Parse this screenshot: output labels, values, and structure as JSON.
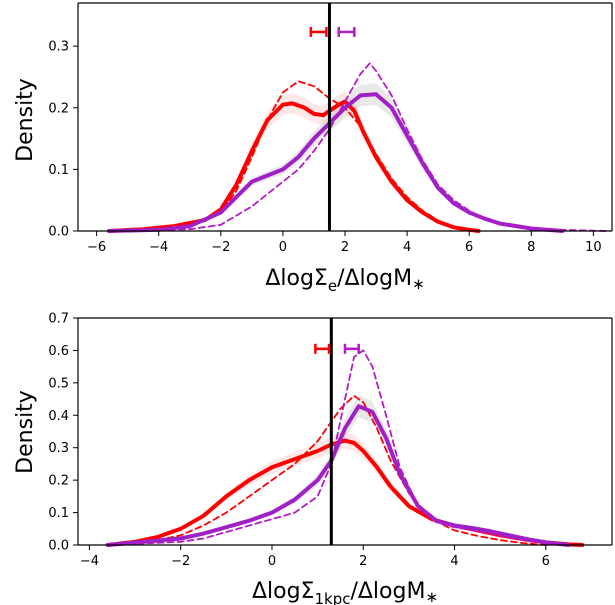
{
  "chart_data": [
    {
      "type": "line",
      "panel": "top",
      "ylabel": "Density",
      "xlabel_main": "ΔlogΣ",
      "xlabel_sub": "e",
      "xlabel_tail": "/ΔlogM",
      "xlabel_star": "∗",
      "xlim": [
        -6.6,
        10.6
      ],
      "ylim": [
        0,
        0.37
      ],
      "xticks": [
        -6,
        -4,
        -2,
        0,
        2,
        4,
        6,
        8,
        10
      ],
      "yticks": [
        0.0,
        0.1,
        0.2,
        0.3
      ],
      "ytick_labels": [
        "0.0",
        "0.1",
        "0.2",
        "0.3"
      ],
      "vline_x": 1.5,
      "errorbars": [
        {
          "color": "#ff0000",
          "xmin": 0.9,
          "xmax": 1.4,
          "y": 0.323
        },
        {
          "color": "#b31bc8",
          "xmin": 1.8,
          "xmax": 2.3,
          "y": 0.323
        }
      ],
      "series": [
        {
          "color": "#ff0000",
          "style": "solid",
          "x": [
            -5.6,
            -4.5,
            -3.5,
            -2.5,
            -2.0,
            -1.5,
            -1.0,
            -0.5,
            0.0,
            0.3,
            0.7,
            1.0,
            1.3,
            1.5,
            1.8,
            2.0,
            2.3,
            2.6,
            3.0,
            3.5,
            4.0,
            4.5,
            5.0,
            5.5,
            6.0,
            6.3
          ],
          "y": [
            0.0,
            0.003,
            0.008,
            0.018,
            0.035,
            0.075,
            0.13,
            0.18,
            0.205,
            0.207,
            0.2,
            0.19,
            0.188,
            0.195,
            0.205,
            0.21,
            0.195,
            0.16,
            0.12,
            0.08,
            0.05,
            0.03,
            0.015,
            0.006,
            0.002,
            0.0
          ]
        },
        {
          "color": "#ff0000",
          "style": "dashed",
          "x": [
            -5.6,
            -4.5,
            -3.5,
            -2.5,
            -2.0,
            -1.5,
            -1.0,
            -0.5,
            0.0,
            0.5,
            1.0,
            1.5,
            2.0,
            2.5,
            3.0,
            3.5,
            4.0,
            4.5,
            5.0,
            5.5,
            6.0,
            6.3
          ],
          "y": [
            0.0,
            0.003,
            0.008,
            0.016,
            0.03,
            0.065,
            0.12,
            0.18,
            0.225,
            0.243,
            0.235,
            0.215,
            0.2,
            0.17,
            0.125,
            0.085,
            0.055,
            0.033,
            0.017,
            0.007,
            0.002,
            0.0
          ]
        },
        {
          "color": "#a020c8",
          "style": "solid",
          "x": [
            -5.6,
            -4.0,
            -3.0,
            -2.0,
            -1.5,
            -1.0,
            -0.5,
            0.0,
            0.5,
            1.0,
            1.5,
            2.0,
            2.5,
            3.0,
            3.5,
            4.0,
            4.5,
            5.0,
            5.5,
            6.0,
            6.5,
            7.0,
            8.0,
            9.0
          ],
          "y": [
            0.0,
            0.002,
            0.008,
            0.03,
            0.055,
            0.08,
            0.09,
            0.1,
            0.12,
            0.15,
            0.175,
            0.2,
            0.22,
            0.222,
            0.2,
            0.155,
            0.11,
            0.07,
            0.045,
            0.03,
            0.02,
            0.012,
            0.004,
            0.0
          ]
        },
        {
          "color": "#b31bc8",
          "style": "dashed",
          "x": [
            -5.6,
            -3.0,
            -2.0,
            -1.5,
            -1.0,
            -0.5,
            0.0,
            0.5,
            1.0,
            1.5,
            2.0,
            2.5,
            2.8,
            3.0,
            3.5,
            4.0,
            4.5,
            5.0,
            5.5,
            6.0,
            6.5,
            7.0,
            8.0,
            9.0,
            10.4
          ],
          "y": [
            0.0,
            0.003,
            0.01,
            0.025,
            0.04,
            0.06,
            0.08,
            0.1,
            0.13,
            0.165,
            0.21,
            0.255,
            0.272,
            0.26,
            0.22,
            0.165,
            0.115,
            0.075,
            0.05,
            0.033,
            0.02,
            0.012,
            0.005,
            0.002,
            0.0
          ]
        }
      ]
    },
    {
      "type": "line",
      "panel": "bottom",
      "ylabel": "Density",
      "xlabel_main": "ΔlogΣ",
      "xlabel_sub": "1kpc",
      "xlabel_tail": "/ΔlogM",
      "xlabel_star": "∗",
      "xlim": [
        -4.25,
        7.45
      ],
      "ylim": [
        0,
        0.7
      ],
      "xticks": [
        -4,
        -2,
        0,
        2,
        4,
        6
      ],
      "yticks": [
        0.0,
        0.1,
        0.2,
        0.3,
        0.4,
        0.5,
        0.6,
        0.7
      ],
      "ytick_labels": [
        "0.0",
        "0.1",
        "0.2",
        "0.3",
        "0.4",
        "0.5",
        "0.6",
        "0.7"
      ],
      "vline_x": 1.3,
      "errorbars": [
        {
          "color": "#ff0000",
          "xmin": 0.95,
          "xmax": 1.25,
          "y": 0.605
        },
        {
          "color": "#b31bc8",
          "xmin": 1.6,
          "xmax": 1.9,
          "y": 0.605
        }
      ],
      "series": [
        {
          "color": "#ff0000",
          "style": "solid",
          "x": [
            -3.6,
            -3.0,
            -2.5,
            -2.0,
            -1.5,
            -1.0,
            -0.5,
            0.0,
            0.5,
            1.0,
            1.3,
            1.6,
            1.8,
            2.0,
            2.3,
            2.6,
            3.0,
            3.5,
            4.0,
            4.5,
            5.0,
            5.5,
            6.0,
            6.5,
            6.8
          ],
          "y": [
            0.0,
            0.01,
            0.025,
            0.05,
            0.09,
            0.15,
            0.2,
            0.24,
            0.265,
            0.29,
            0.31,
            0.322,
            0.315,
            0.29,
            0.24,
            0.18,
            0.12,
            0.08,
            0.06,
            0.045,
            0.03,
            0.018,
            0.008,
            0.002,
            0.0
          ]
        },
        {
          "color": "#ff0000",
          "style": "dashed",
          "x": [
            -3.6,
            -2.5,
            -2.0,
            -1.5,
            -1.0,
            -0.5,
            0.0,
            0.5,
            1.0,
            1.5,
            1.8,
            2.0,
            2.3,
            2.6,
            3.0,
            3.5,
            4.0,
            4.5,
            5.0,
            5.5,
            6.0
          ],
          "y": [
            0.0,
            0.015,
            0.03,
            0.06,
            0.1,
            0.15,
            0.2,
            0.25,
            0.32,
            0.42,
            0.46,
            0.44,
            0.36,
            0.26,
            0.16,
            0.08,
            0.045,
            0.028,
            0.015,
            0.006,
            0.0
          ]
        },
        {
          "color": "#a020c8",
          "style": "solid",
          "x": [
            -3.6,
            -2.0,
            -1.5,
            -1.0,
            -0.5,
            0.0,
            0.5,
            1.0,
            1.3,
            1.6,
            1.9,
            2.2,
            2.5,
            2.8,
            3.2,
            3.6,
            4.0,
            4.4,
            4.8,
            5.2,
            5.6,
            6.0,
            6.5
          ],
          "y": [
            0.0,
            0.02,
            0.035,
            0.055,
            0.075,
            0.1,
            0.14,
            0.2,
            0.26,
            0.36,
            0.428,
            0.41,
            0.33,
            0.22,
            0.12,
            0.075,
            0.06,
            0.052,
            0.042,
            0.03,
            0.018,
            0.008,
            0.0
          ]
        },
        {
          "color": "#b31bc8",
          "style": "dashed",
          "x": [
            -3.6,
            -2.0,
            -1.5,
            -1.0,
            -0.5,
            0.0,
            0.5,
            1.0,
            1.3,
            1.6,
            1.8,
            2.0,
            2.2,
            2.5,
            2.8,
            3.2,
            3.6,
            4.0,
            4.4,
            4.8,
            5.2,
            5.6,
            6.0,
            6.5
          ],
          "y": [
            0.0,
            0.01,
            0.02,
            0.04,
            0.06,
            0.08,
            0.1,
            0.15,
            0.25,
            0.45,
            0.58,
            0.6,
            0.55,
            0.4,
            0.24,
            0.12,
            0.07,
            0.055,
            0.045,
            0.035,
            0.022,
            0.012,
            0.005,
            0.0
          ]
        }
      ]
    }
  ]
}
